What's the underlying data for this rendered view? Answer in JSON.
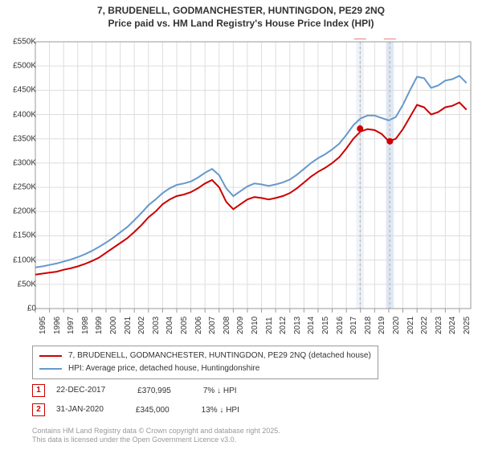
{
  "title_line1": "7, BRUDENELL, GODMANCHESTER, HUNTINGDON, PE29 2NQ",
  "title_line2": "Price paid vs. HM Land Registry's House Price Index (HPI)",
  "chart": {
    "type": "line",
    "background_color": "#ffffff",
    "grid_color": "#dddddd",
    "border_color": "#999999",
    "x_years": [
      1995,
      1996,
      1997,
      1998,
      1999,
      2000,
      2001,
      2002,
      2003,
      2004,
      2005,
      2006,
      2007,
      2008,
      2009,
      2010,
      2011,
      2012,
      2013,
      2014,
      2015,
      2016,
      2017,
      2018,
      2019,
      2020,
      2021,
      2022,
      2023,
      2024,
      2025
    ],
    "xlim": [
      1995,
      2025.8
    ],
    "ylim": [
      0,
      550000
    ],
    "ytick_step": 50000,
    "ytick_prefix": "£",
    "ytick_labels": [
      "£0",
      "£50K",
      "£100K",
      "£150K",
      "£200K",
      "£250K",
      "£300K",
      "£350K",
      "£400K",
      "£450K",
      "£500K",
      "£550K"
    ],
    "tick_fontsize": 10,
    "xtick_rotation": -90,
    "series": [
      {
        "name": "price_paid",
        "label": "7, BRUDENELL, GODMANCHESTER, HUNTINGDON, PE29 2NQ (detached house)",
        "color": "#cc0000",
        "line_width": 2,
        "x": [
          1995,
          1995.5,
          1996,
          1996.5,
          1997,
          1997.5,
          1998,
          1998.5,
          1999,
          1999.5,
          2000,
          2000.5,
          2001,
          2001.5,
          2002,
          2002.5,
          2003,
          2003.5,
          2004,
          2004.5,
          2005,
          2005.5,
          2006,
          2006.5,
          2007,
          2007.5,
          2008,
          2008.5,
          2009,
          2009.5,
          2010,
          2010.5,
          2011,
          2011.5,
          2012,
          2012.5,
          2013,
          2013.5,
          2014,
          2014.5,
          2015,
          2015.5,
          2016,
          2016.5,
          2017,
          2017.5,
          2018,
          2018.5,
          2019,
          2019.5,
          2020,
          2020.5,
          2021,
          2021.5,
          2022,
          2022.5,
          2023,
          2023.5,
          2024,
          2024.5,
          2025,
          2025.5
        ],
        "y": [
          70000,
          72000,
          74000,
          76000,
          80000,
          83000,
          87000,
          92000,
          98000,
          105000,
          115000,
          125000,
          135000,
          145000,
          158000,
          172000,
          188000,
          200000,
          215000,
          225000,
          232000,
          235000,
          240000,
          248000,
          258000,
          265000,
          250000,
          220000,
          205000,
          215000,
          225000,
          230000,
          228000,
          225000,
          228000,
          232000,
          238000,
          248000,
          260000,
          272000,
          282000,
          290000,
          300000,
          312000,
          330000,
          350000,
          365000,
          370000,
          368000,
          360000,
          345000,
          350000,
          370000,
          395000,
          420000,
          415000,
          400000,
          405000,
          415000,
          418000,
          425000,
          410000
        ]
      },
      {
        "name": "hpi",
        "label": "HPI: Average price, detached house, Huntingdonshire",
        "color": "#6699cc",
        "line_width": 2,
        "x": [
          1995,
          1995.5,
          1996,
          1996.5,
          1997,
          1997.5,
          1998,
          1998.5,
          1999,
          1999.5,
          2000,
          2000.5,
          2001,
          2001.5,
          2002,
          2002.5,
          2003,
          2003.5,
          2004,
          2004.5,
          2005,
          2005.5,
          2006,
          2006.5,
          2007,
          2007.5,
          2008,
          2008.5,
          2009,
          2009.5,
          2010,
          2010.5,
          2011,
          2011.5,
          2012,
          2012.5,
          2013,
          2013.5,
          2014,
          2014.5,
          2015,
          2015.5,
          2016,
          2016.5,
          2017,
          2017.5,
          2018,
          2018.5,
          2019,
          2019.5,
          2020,
          2020.5,
          2021,
          2021.5,
          2022,
          2022.5,
          2023,
          2023.5,
          2024,
          2024.5,
          2025,
          2025.5
        ],
        "y": [
          85000,
          87000,
          90000,
          93000,
          97000,
          101000,
          106000,
          112000,
          119000,
          127000,
          136000,
          146000,
          157000,
          168000,
          182000,
          197000,
          213000,
          225000,
          238000,
          248000,
          255000,
          258000,
          262000,
          270000,
          280000,
          288000,
          275000,
          248000,
          232000,
          242000,
          252000,
          258000,
          256000,
          253000,
          256000,
          260000,
          266000,
          276000,
          288000,
          300000,
          310000,
          318000,
          328000,
          340000,
          358000,
          378000,
          392000,
          398000,
          398000,
          393000,
          388000,
          395000,
          420000,
          450000,
          478000,
          475000,
          455000,
          460000,
          470000,
          473000,
          480000,
          465000
        ]
      }
    ],
    "markers": [
      {
        "num": "1",
        "x": 2017.97,
        "y": 370995,
        "band_color": "#eef3fb",
        "badge_border": "#cc0000",
        "badge_text": "#cc0000"
      },
      {
        "num": "2",
        "x": 2020.08,
        "y": 345000,
        "band_color": "#dde8f7",
        "badge_border": "#cc0000",
        "badge_text": "#cc0000"
      }
    ],
    "marker_band_width_years": 0.55,
    "marker_line_color": "#b0b0b0",
    "marker_line_dash": "3,3",
    "point_marker_color": "#cc0000",
    "point_marker_radius": 4
  },
  "legend": {
    "border_color": "#999999",
    "fontsize": 10
  },
  "marker_rows": [
    {
      "num": "1",
      "date": "22-DEC-2017",
      "price": "£370,995",
      "delta": "7% ↓ HPI"
    },
    {
      "num": "2",
      "date": "31-JAN-2020",
      "price": "£345,000",
      "delta": "13% ↓ HPI"
    }
  ],
  "attribution_line1": "Contains HM Land Registry data © Crown copyright and database right 2025.",
  "attribution_line2": "This data is licensed under the Open Government Licence v3.0."
}
